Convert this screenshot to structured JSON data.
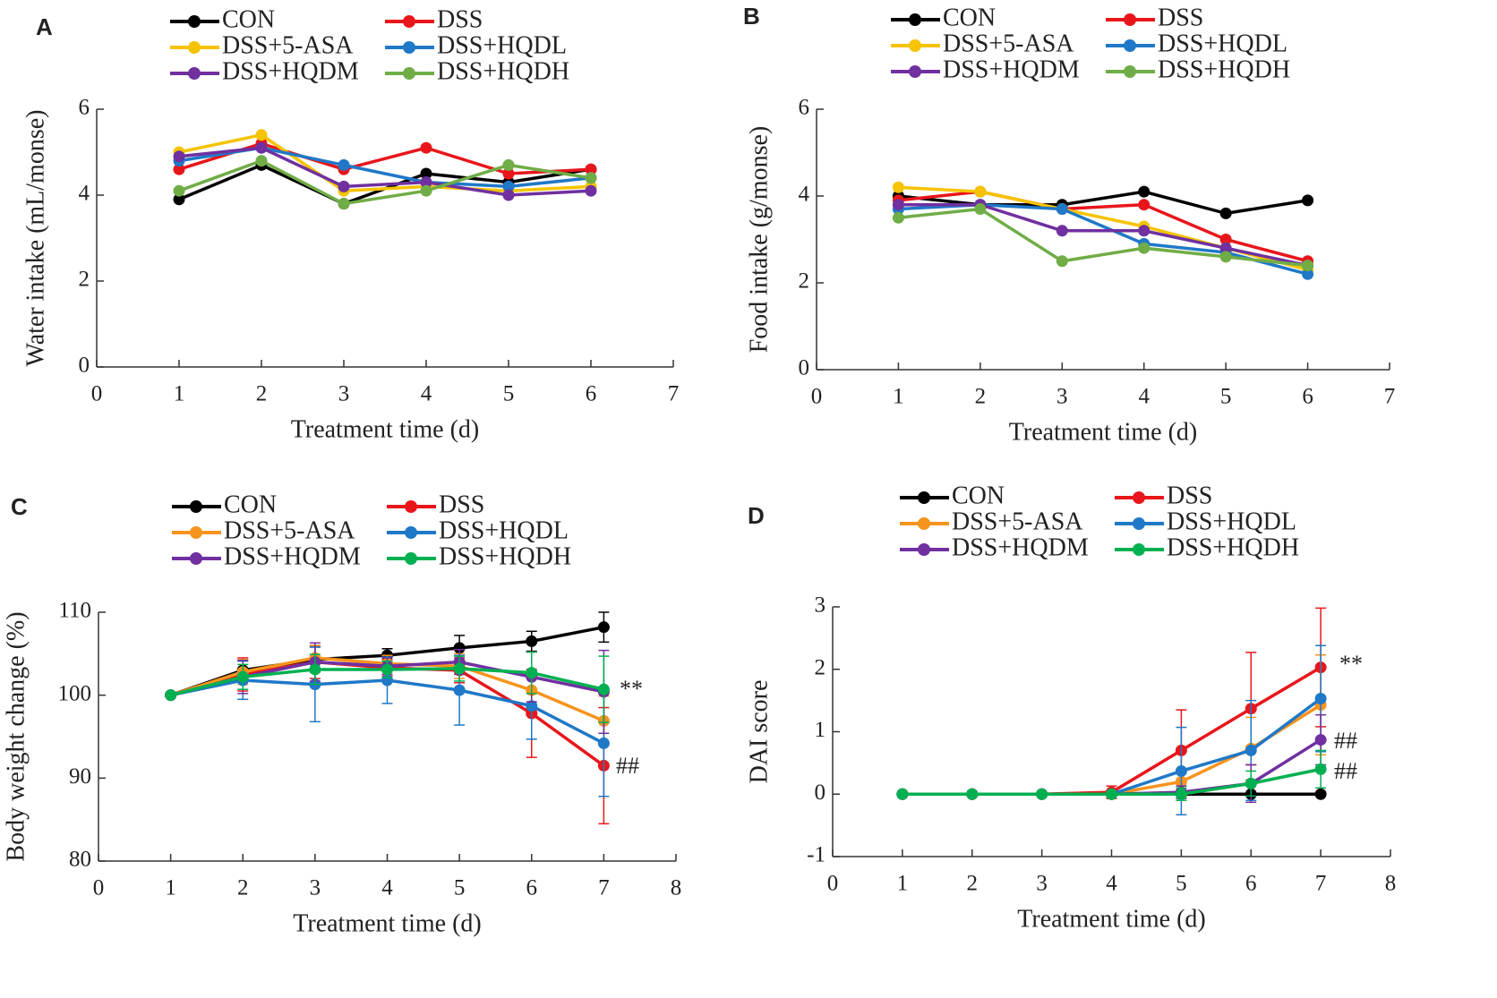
{
  "chart_data": [
    {
      "type": "line",
      "panel": "A",
      "ylabel": "Water intake (mL/monse)",
      "xlabel": "Treatment time (d)",
      "x": [
        1,
        2,
        3,
        4,
        5,
        6
      ],
      "xlim": [
        0,
        7
      ],
      "xticks": [
        0,
        1,
        2,
        3,
        4,
        5,
        6,
        7
      ],
      "ylim": [
        0,
        6
      ],
      "yticks": [
        0,
        2,
        4,
        6
      ],
      "series": [
        {
          "name": "CON",
          "color": "#000000",
          "values": [
            3.9,
            4.7,
            3.8,
            4.5,
            4.3,
            4.6
          ]
        },
        {
          "name": "DSS",
          "color": "#e8161b",
          "values": [
            4.6,
            5.2,
            4.6,
            5.1,
            4.5,
            4.6
          ]
        },
        {
          "name": "DSS+5-ASA",
          "color": "#f5c300",
          "values": [
            5.0,
            5.4,
            4.1,
            4.2,
            4.1,
            4.2
          ]
        },
        {
          "name": "DSS+HQDL",
          "color": "#1f78c8",
          "values": [
            4.8,
            5.1,
            4.7,
            4.3,
            4.2,
            4.4
          ]
        },
        {
          "name": "DSS+HQDM",
          "color": "#7030a0",
          "values": [
            4.9,
            5.1,
            4.2,
            4.3,
            4.0,
            4.1
          ]
        },
        {
          "name": "DSS+HQDH",
          "color": "#70ad47",
          "values": [
            4.1,
            4.8,
            3.8,
            4.1,
            4.7,
            4.4
          ]
        }
      ]
    },
    {
      "type": "line",
      "panel": "B",
      "ylabel": "Food intake (g/monse)",
      "xlabel": "Treatment time (d)",
      "x": [
        1,
        2,
        3,
        4,
        5,
        6
      ],
      "xlim": [
        0,
        7
      ],
      "xticks": [
        0,
        1,
        2,
        3,
        4,
        5,
        6,
        7
      ],
      "ylim": [
        0,
        6
      ],
      "yticks": [
        0,
        2,
        4,
        6
      ],
      "series": [
        {
          "name": "CON",
          "color": "#000000",
          "values": [
            4.0,
            3.8,
            3.8,
            4.1,
            3.6,
            3.9
          ]
        },
        {
          "name": "DSS",
          "color": "#e8161b",
          "values": [
            3.9,
            4.1,
            3.7,
            3.8,
            3.0,
            2.5
          ]
        },
        {
          "name": "DSS+5-ASA",
          "color": "#f5c300",
          "values": [
            4.2,
            4.1,
            3.7,
            3.3,
            2.8,
            2.3
          ]
        },
        {
          "name": "DSS+HQDL",
          "color": "#1f78c8",
          "values": [
            3.7,
            3.8,
            3.7,
            2.9,
            2.7,
            2.2
          ]
        },
        {
          "name": "DSS+HQDM",
          "color": "#7030a0",
          "values": [
            3.8,
            3.8,
            3.2,
            3.2,
            2.8,
            2.4
          ]
        },
        {
          "name": "DSS+HQDH",
          "color": "#70ad47",
          "values": [
            3.5,
            3.7,
            2.5,
            2.8,
            2.6,
            2.4
          ]
        }
      ]
    },
    {
      "type": "line",
      "panel": "C",
      "ylabel": "Body weight change (%)",
      "xlabel": "Treatment time (d)",
      "x": [
        1,
        2,
        3,
        4,
        5,
        6,
        7
      ],
      "xlim": [
        0,
        8
      ],
      "xticks": [
        0,
        1,
        2,
        3,
        4,
        5,
        6,
        7,
        8
      ],
      "ylim": [
        80,
        110
      ],
      "yticks": [
        80,
        90,
        100,
        110
      ],
      "annotations": [
        "**",
        "##"
      ],
      "series": [
        {
          "name": "CON",
          "color": "#000000",
          "values": [
            100,
            103,
            104.3,
            104.8,
            105.7,
            106.5,
            108.2
          ],
          "errors": [
            0,
            1.2,
            1.5,
            0.8,
            1.5,
            1.2,
            1.8
          ]
        },
        {
          "name": "DSS",
          "color": "#e8161b",
          "values": [
            100,
            102.5,
            104,
            103.3,
            103,
            97.8,
            91.5
          ],
          "errors": [
            0,
            2,
            2,
            1,
            1.5,
            5.3,
            7
          ]
        },
        {
          "name": "DSS+5-ASA",
          "color": "#f7941d",
          "values": [
            100,
            102.8,
            104.5,
            103.8,
            103.5,
            100.6,
            96.9
          ],
          "errors": [
            0,
            1.5,
            1.5,
            1,
            1.5,
            2,
            3
          ]
        },
        {
          "name": "DSS+HQDL",
          "color": "#1f78c8",
          "values": [
            100,
            101.8,
            101.3,
            101.8,
            100.6,
            98.7,
            94.2
          ],
          "errors": [
            0,
            2.3,
            4.5,
            2.8,
            4.2,
            4,
            6.4
          ]
        },
        {
          "name": "DSS+HQDM",
          "color": "#7030a0",
          "values": [
            100,
            102.2,
            104,
            103.5,
            104,
            102.2,
            100.4
          ],
          "errors": [
            0,
            2,
            2.3,
            1,
            1.5,
            3,
            5
          ]
        },
        {
          "name": "DSS+HQDH",
          "color": "#00b050",
          "values": [
            100,
            102.2,
            103.1,
            103.1,
            103.2,
            102.7,
            100.7
          ],
          "errors": [
            0,
            1.5,
            1.8,
            1,
            1.5,
            2.5,
            4
          ]
        }
      ]
    },
    {
      "type": "line",
      "panel": "D",
      "ylabel": "DAI score",
      "xlabel": "Treatment time (d)",
      "x": [
        1,
        2,
        3,
        4,
        5,
        6,
        7
      ],
      "xlim": [
        0,
        8
      ],
      "xticks": [
        0,
        1,
        2,
        3,
        4,
        5,
        6,
        7,
        8
      ],
      "ylim": [
        -1,
        3
      ],
      "yticks": [
        -1,
        0,
        1,
        2,
        3
      ],
      "annotations": [
        "**",
        "##",
        "##"
      ],
      "series": [
        {
          "name": "CON",
          "color": "#000000",
          "values": [
            0,
            0,
            0,
            0,
            0,
            0,
            0
          ],
          "errors": [
            0,
            0,
            0,
            0,
            0,
            0,
            0
          ]
        },
        {
          "name": "DSS",
          "color": "#e8161b",
          "values": [
            0,
            0,
            0,
            0.03,
            0.7,
            1.37,
            2.03
          ],
          "errors": [
            0,
            0,
            0,
            0.1,
            0.65,
            0.9,
            0.95
          ]
        },
        {
          "name": "DSS+5-ASA",
          "color": "#f7941d",
          "values": [
            0,
            0,
            0,
            0,
            0.2,
            0.73,
            1.43
          ],
          "errors": [
            0,
            0,
            0,
            0,
            0.2,
            0.5,
            0.8
          ]
        },
        {
          "name": "DSS+HQDL",
          "color": "#1f78c8",
          "values": [
            0,
            0,
            0,
            0,
            0.37,
            0.7,
            1.53
          ],
          "errors": [
            0,
            0,
            0,
            0,
            0.7,
            0.8,
            0.85
          ]
        },
        {
          "name": "DSS+HQDM",
          "color": "#7030a0",
          "values": [
            0,
            0,
            0,
            0,
            0.03,
            0.17,
            0.87
          ],
          "errors": [
            0,
            0,
            0,
            0,
            0.1,
            0.3,
            0.4
          ]
        },
        {
          "name": "DSS+HQDH",
          "color": "#00b050",
          "values": [
            0,
            0,
            0,
            0,
            0,
            0.17,
            0.4
          ],
          "errors": [
            0,
            0,
            0,
            0,
            0.1,
            0.2,
            0.3
          ]
        }
      ]
    }
  ]
}
